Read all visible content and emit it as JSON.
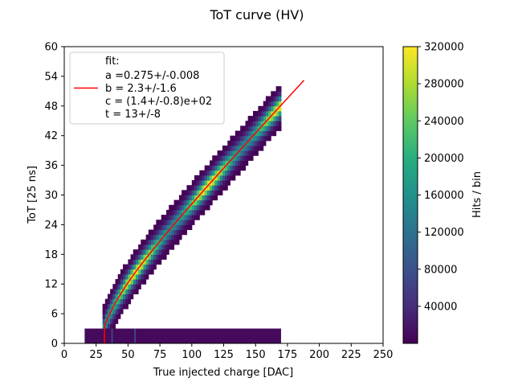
{
  "chart_data": {
    "type": "heatmap",
    "title": "ToT curve (HV)",
    "xlabel": "True injected charge [DAC]",
    "ylabel": "ToT [25 ns]",
    "xlim": [
      0,
      250
    ],
    "ylim": [
      0,
      60
    ],
    "xticks": [
      0,
      25,
      50,
      75,
      100,
      125,
      150,
      175,
      200,
      225,
      250
    ],
    "yticks": [
      0,
      6,
      12,
      18,
      24,
      30,
      36,
      42,
      48,
      54,
      60
    ],
    "grid": false,
    "colorbar": {
      "label": "Hits / bin",
      "min": 1,
      "max": 320000,
      "ticks": [
        40000,
        80000,
        120000,
        160000,
        200000,
        240000,
        280000,
        320000
      ],
      "colormap": "viridis"
    },
    "legend": {
      "placement": "upper-left",
      "entries": [
        {
          "label": "fit:",
          "params": [
            "a =0.275+/-0.008",
            "b = 2.3+/-1.6",
            "c = (1.4+/-0.8)e+02",
            "t = 13+/-8"
          ],
          "color": "#ff0000"
        }
      ]
    },
    "fit": {
      "x_start": 31.5,
      "x_end": 188,
      "a": 0.275,
      "b": 2.3,
      "c": 140,
      "t": 13
    },
    "histogram": {
      "x_bin_width": 2,
      "x_range": [
        16,
        170
      ],
      "band_x_start": 30,
      "band_half_width_tot": 4.5,
      "low_tot_band": {
        "y_range": [
          0,
          3
        ],
        "x_range": [
          16,
          170
        ],
        "value": 8000
      }
    }
  }
}
